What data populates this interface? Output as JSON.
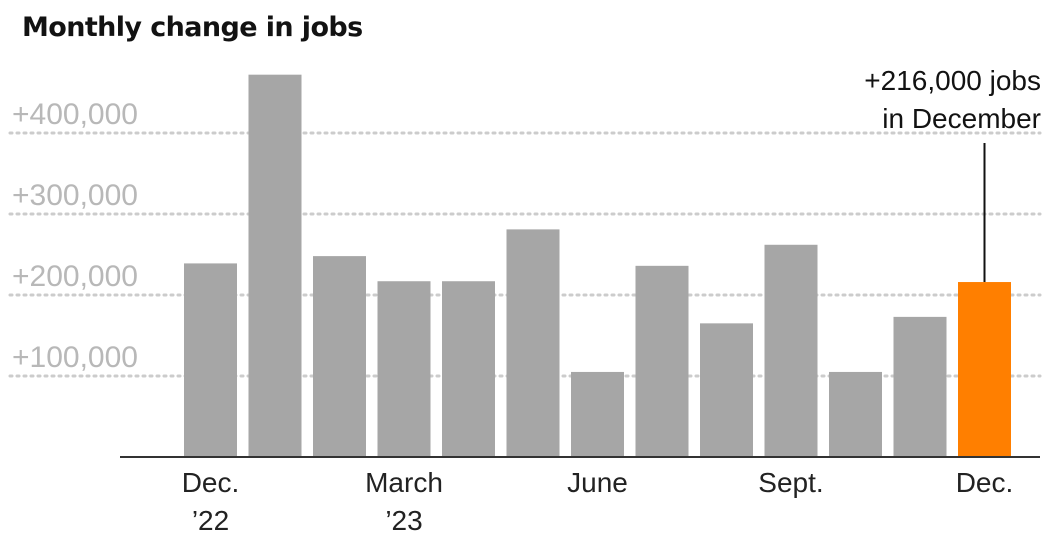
{
  "chart_data": {
    "type": "bar",
    "title": "Monthly change in jobs",
    "categories": [
      "Dec. 2022",
      "Jan. 2023",
      "Feb. 2023",
      "Mar. 2023",
      "Apr. 2023",
      "May 2023",
      "Jun. 2023",
      "Jul. 2023",
      "Aug. 2023",
      "Sep. 2023",
      "Oct. 2023",
      "Nov. 2023",
      "Dec. 2023"
    ],
    "values": [
      239000,
      472000,
      248000,
      217000,
      217000,
      281000,
      105000,
      236000,
      165000,
      262000,
      105000,
      173000,
      216000
    ],
    "highlight_index": 12,
    "ylim": [
      0,
      480000
    ],
    "yticks": [
      {
        "value": 100000,
        "label": "+100,000"
      },
      {
        "value": 200000,
        "label": "+200,000"
      },
      {
        "value": 300000,
        "label": "+300,000"
      },
      {
        "value": 400000,
        "label": "+400,000"
      }
    ],
    "x_tick_labels": [
      {
        "index": 0,
        "lines": [
          "Dec.",
          "’22"
        ]
      },
      {
        "index": 3,
        "lines": [
          "March",
          "’23"
        ]
      },
      {
        "index": 6,
        "lines": [
          "June"
        ]
      },
      {
        "index": 9,
        "lines": [
          "Sept."
        ]
      },
      {
        "index": 12,
        "lines": [
          "Dec."
        ]
      }
    ],
    "annotation": {
      "index": 12,
      "lines": [
        "+216,000 jobs",
        "in December"
      ]
    },
    "grid": true,
    "colors": {
      "bar": "#a6a6a6",
      "highlight": "#ff7f00",
      "grid": "#cccccc",
      "tick_label": "#b8b8b8",
      "axis": "#333333"
    }
  }
}
